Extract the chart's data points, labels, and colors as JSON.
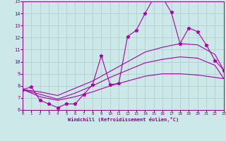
{
  "xlabel": "Windchill (Refroidissement éolien,°C)",
  "xlim": [
    0,
    23
  ],
  "ylim": [
    6,
    15
  ],
  "xticks": [
    0,
    1,
    2,
    3,
    4,
    5,
    6,
    7,
    8,
    9,
    10,
    11,
    12,
    13,
    14,
    15,
    16,
    17,
    18,
    19,
    20,
    21,
    22,
    23
  ],
  "yticks": [
    6,
    7,
    8,
    9,
    10,
    11,
    12,
    13,
    14,
    15
  ],
  "background_color": "#cce8e8",
  "line_color": "#aa00aa",
  "grid_color": "#aacccc",
  "series_main": {
    "x": [
      0,
      1,
      2,
      3,
      4,
      5,
      6,
      7,
      8,
      9,
      10,
      11,
      12,
      13,
      14,
      15,
      16,
      17,
      18,
      19,
      20,
      21,
      22,
      23
    ],
    "y": [
      7.7,
      7.9,
      6.8,
      6.5,
      6.2,
      6.5,
      6.5,
      7.3,
      8.1,
      10.5,
      8.1,
      8.2,
      12.1,
      12.6,
      14.0,
      15.3,
      15.3,
      14.1,
      11.5,
      12.8,
      12.5,
      11.4,
      10.1,
      9.3
    ]
  },
  "series_smooth": [
    {
      "x": [
        0,
        2,
        4,
        6,
        8,
        10,
        12,
        14,
        16,
        18,
        20,
        22,
        23
      ],
      "y": [
        7.7,
        7.5,
        7.2,
        7.8,
        8.4,
        9.2,
        10.0,
        10.8,
        11.2,
        11.5,
        11.4,
        10.6,
        9.3
      ]
    },
    {
      "x": [
        0,
        2,
        4,
        6,
        8,
        10,
        12,
        14,
        16,
        18,
        20,
        22,
        23
      ],
      "y": [
        7.7,
        7.3,
        6.9,
        7.4,
        8.0,
        8.7,
        9.3,
        9.9,
        10.2,
        10.4,
        10.3,
        9.7,
        8.6
      ]
    },
    {
      "x": [
        0,
        2,
        4,
        6,
        8,
        10,
        12,
        14,
        16,
        18,
        20,
        22,
        23
      ],
      "y": [
        7.7,
        7.1,
        6.8,
        7.1,
        7.5,
        8.0,
        8.4,
        8.8,
        9.0,
        9.0,
        8.9,
        8.7,
        8.6
      ]
    }
  ]
}
